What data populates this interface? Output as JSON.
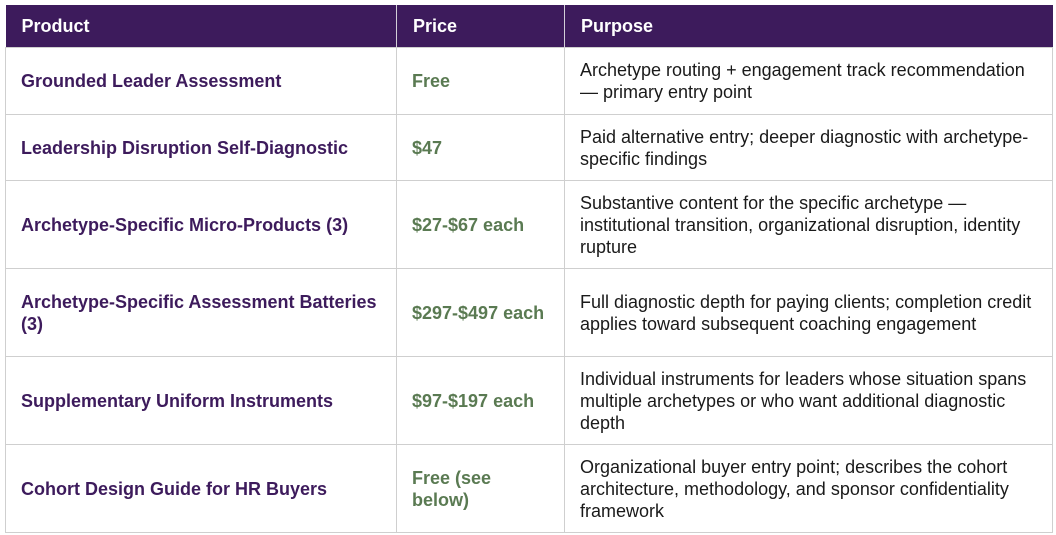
{
  "table": {
    "headers": {
      "product": "Product",
      "price": "Price",
      "purpose": "Purpose"
    },
    "rows": [
      {
        "product": "Grounded Leader Assessment",
        "price": "Free",
        "purpose": "Archetype routing + engagement track recommendation — primary entry point"
      },
      {
        "product": "Leadership Disruption Self-Diagnostic",
        "price": "$47",
        "purpose": "Paid alternative entry; deeper diagnostic with archetype-specific findings"
      },
      {
        "product": "Archetype-Specific Micro-Products (3)",
        "price": "$27-$67 each",
        "purpose": "Substantive content for the specific archetype — institutional transition, organizational disruption, identity rupture"
      },
      {
        "product": "Archetype-Specific Assessment Batteries (3)",
        "price": "$297-$497 each",
        "purpose": "Full diagnostic depth for paying clients; completion credit applies toward subsequent coaching engagement"
      },
      {
        "product": "Supplementary Uniform Instruments",
        "price": "$97-$197 each",
        "purpose": "Individual instruments for leaders whose situation spans multiple archetypes or who want additional diagnostic depth"
      },
      {
        "product": "Cohort Design Guide for HR Buyers",
        "price": "Free (see below)",
        "purpose": "Organizational buyer entry point; describes the cohort architecture, methodology, and sponsor confidentiality framework"
      }
    ]
  },
  "colors": {
    "header_bg": "#3d1b5c",
    "product_text": "#3d1b5c",
    "price_text": "#5a7a52",
    "border": "#cfcfcf"
  }
}
